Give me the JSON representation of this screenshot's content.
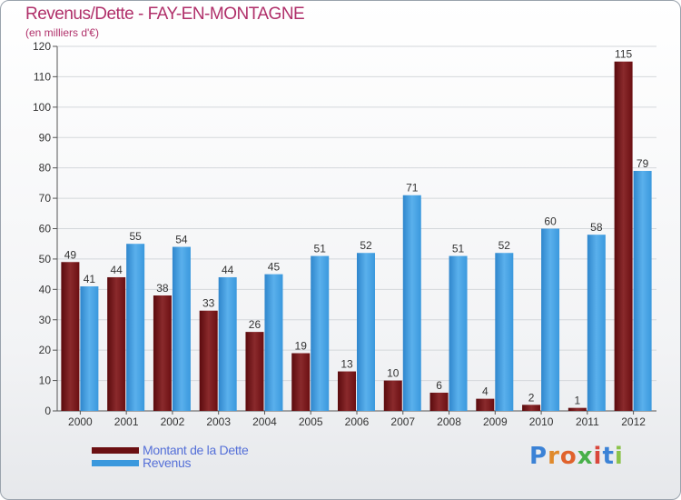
{
  "title": "Revenus/Dette - FAY-EN-MONTAGNE",
  "subtitle": "(en milliers d'€)",
  "logo_text": "Proxiti",
  "colors": {
    "dette": "#6b0f12",
    "revenus": "#3a98dd",
    "title": "#b0306a",
    "legend_text": "#5570d8"
  },
  "legend": {
    "dette_label": "Montant de la Dette",
    "revenus_label": "Revenus"
  },
  "chart_data": {
    "type": "bar",
    "title": "Revenus/Dette - FAY-EN-MONTAGNE",
    "subtitle": "(en milliers d'€)",
    "categories": [
      "2000",
      "2001",
      "2002",
      "2003",
      "2004",
      "2005",
      "2006",
      "2007",
      "2008",
      "2009",
      "2010",
      "2011",
      "2012"
    ],
    "series": [
      {
        "name": "Montant de la Dette",
        "values": [
          49,
          44,
          38,
          33,
          26,
          19,
          13,
          10,
          6,
          4,
          2,
          1,
          115
        ]
      },
      {
        "name": "Revenus",
        "values": [
          41,
          55,
          54,
          44,
          45,
          51,
          52,
          71,
          51,
          52,
          60,
          58,
          79
        ]
      }
    ],
    "ylim": [
      0,
      120
    ],
    "yticks": [
      0,
      10,
      20,
      30,
      40,
      50,
      60,
      70,
      80,
      90,
      100,
      110,
      120
    ],
    "grid": true,
    "legend_position": "bottom-left"
  }
}
